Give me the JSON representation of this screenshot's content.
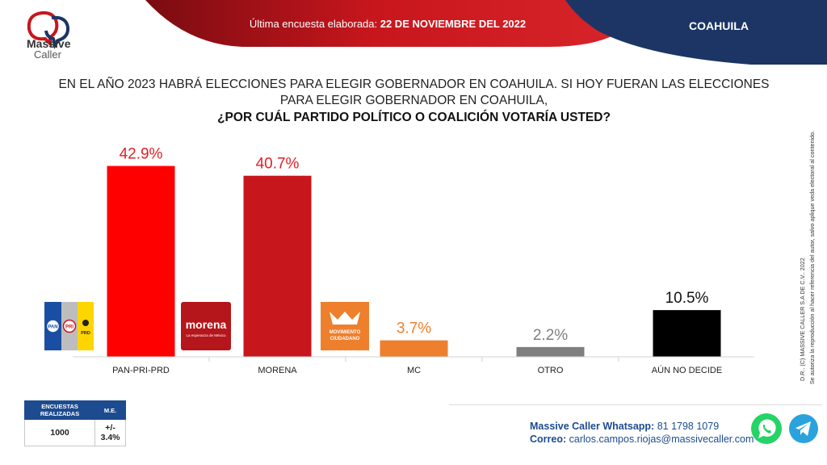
{
  "brand": {
    "name_line1": "Massive",
    "name_line2": "Caller"
  },
  "header": {
    "survey_label": "Última encuesta elaborada: ",
    "survey_date": "22 DE NOVIEMBRE DEL 2022",
    "state": "COAHUILA"
  },
  "question": {
    "line1": "EN EL AÑO 2023 HABRÁ ELECCIONES PARA ELEGIR GOBERNADOR EN COAHUILA. SI HOY FUERAN LAS ELECCIONES",
    "line2": "PARA ELEGIR GOBERNADOR EN COAHUILA,",
    "line3": "¿POR CUÁL PARTIDO POLÍTICO O COALICIÓN VOTARÍA USTED?"
  },
  "side_note": {
    "line1": "D.R.. (C) MASSIVE CALLER S.A DE C.V.. 2022",
    "line2": "Se autoriza la reproducción al hacer referencia del autor, salvo aplique veda electoral al contenido."
  },
  "party_logos": {
    "pan": "PAN",
    "pri": "PRI",
    "prd": "PRD",
    "morena": "morena",
    "morena_tagline": "La esperanza de México",
    "mc_line1": "MOVIMIENTO",
    "mc_line2": "CIUDADANO"
  },
  "chart_data": {
    "type": "bar",
    "title": "¿POR CUÁL PARTIDO POLÍTICO O COALICIÓN VOTARÍA USTED?",
    "categories": [
      "PAN-PRI-PRD",
      "MORENA",
      "MC",
      "OTRO",
      "AÚN NO DECIDE"
    ],
    "values": [
      42.9,
      40.7,
      3.7,
      2.2,
      10.5
    ],
    "value_labels": [
      "42.9%",
      "40.7%",
      "3.7%",
      "2.2%",
      "10.5%"
    ],
    "colors": [
      "#ff0000",
      "#c8161d",
      "#ee7f2d",
      "#7f7f7f",
      "#000000"
    ],
    "label_colors": [
      "#e31e24",
      "#e31e24",
      "#ee7f2d",
      "#7f7f7f",
      "#111111"
    ],
    "ylim": [
      0,
      45
    ],
    "grid": false,
    "xlabel": "",
    "ylabel": ""
  },
  "stats": {
    "headers": [
      "ENCUESTAS REALIZADAS",
      "M.E."
    ],
    "values": [
      "1000",
      "+/- 3.4%"
    ]
  },
  "footer": {
    "whatsapp_label": "Massive Caller Whatsapp:",
    "whatsapp_number": " 81 1798 1079",
    "email_label": "Correo:",
    "email": " carlos.campos.riojas@massivecaller.com"
  },
  "colors": {
    "header_red": "#c8161d",
    "header_navy": "#1c3565",
    "accent_blue": "#1d4b8f"
  }
}
